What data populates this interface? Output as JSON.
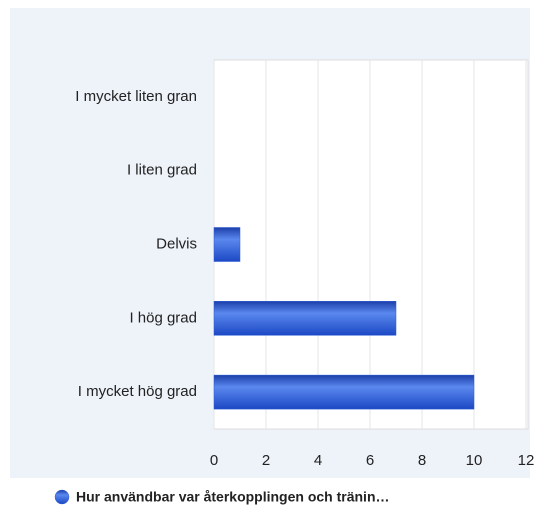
{
  "chart_data": {
    "type": "bar",
    "orientation": "horizontal",
    "categories": [
      "I mycket liten gran",
      "I liten grad",
      "Delvis",
      "I hög grad",
      "I mycket hög grad"
    ],
    "series": [
      {
        "name": "Hur användbar var återkopplingen och tränin…",
        "color": "#2a5bd7",
        "values": [
          0,
          0,
          1,
          7,
          10
        ]
      }
    ],
    "xlim": [
      0,
      12
    ],
    "xticks": [
      0,
      2,
      4,
      6,
      8,
      10,
      12
    ],
    "grid": true,
    "legend": "bottom"
  }
}
